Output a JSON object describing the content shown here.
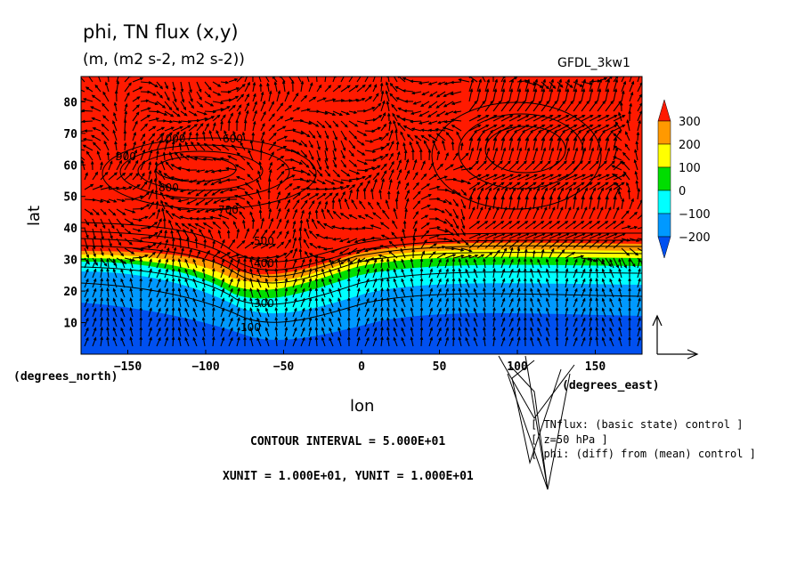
{
  "title": "phi, TN flux (x,y)",
  "subtitle": "(m, (m2 s-2, m2 s-2))",
  "model": "GFDL_3kw1",
  "x_unit_note": "(degrees_north)",
  "y_unit_note": "(degrees_east)",
  "footer": {
    "contour_interval": "CONTOUR INTERVAL = 5.000E+01",
    "vector_units": "XUNIT = 1.000E+01, YUNIT = 1.000E+01"
  },
  "info_lines": [
    "[ TNflux: (basic state) control ]",
    "[ z=50 hPa ]",
    "[ phi: (diff) from (mean) control ]"
  ],
  "colorbar": {
    "labels": [
      "300",
      "200",
      "100",
      "0",
      "−100",
      "−200"
    ],
    "colors": [
      "#ff1a00",
      "#ff9900",
      "#ffff00",
      "#00dd00",
      "#00ffff",
      "#0099ff",
      "#0050f0"
    ]
  },
  "contour_labels": [
    "1000",
    "900",
    "800",
    "700",
    "600",
    "500",
    "400",
    "300",
    "100"
  ],
  "chart_data": {
    "type": "heatmap",
    "title": "phi, TN flux (x,y)",
    "subtitle": "(m, (m2 s-2, m2 s-2))",
    "xlabel": "lon",
    "ylabel": "lat",
    "xlim": [
      -180,
      180
    ],
    "ylim": [
      0,
      88
    ],
    "x_ticks": [
      "−150",
      "−100",
      "−50",
      "0",
      "50",
      "100",
      "150"
    ],
    "y_ticks": [
      "10",
      "20",
      "30",
      "40",
      "50",
      "60",
      "70",
      "80"
    ],
    "contour_interval": 50,
    "color_levels": [
      -250,
      -200,
      -100,
      0,
      100,
      200,
      300
    ],
    "vector_overlay": "TN flux (x,y)"
  }
}
